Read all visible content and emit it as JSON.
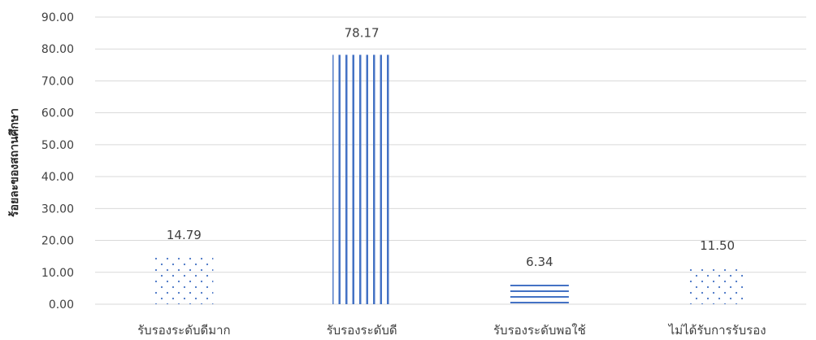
{
  "chart_data": {
    "type": "bar",
    "title": "",
    "xlabel": "",
    "ylabel": "ร้อยละของสถานศึกษา",
    "ylim": [
      0,
      90
    ],
    "yticks": [
      "0.00",
      "10.00",
      "20.00",
      "30.00",
      "40.00",
      "50.00",
      "60.00",
      "70.00",
      "80.00",
      "90.00"
    ],
    "categories": [
      "รับรองระดับดีมาก",
      "รับรองระดับดี",
      "รับรองระดับพอใช้",
      "ไม่ได้รับการรับรอง"
    ],
    "values": [
      14.79,
      78.17,
      6.34,
      11.5
    ],
    "value_labels": [
      "14.79",
      "78.17",
      "6.34",
      "11.50"
    ],
    "patterns": [
      "dots",
      "vertical-lines",
      "horizontal-lines",
      "dots"
    ],
    "grid": true,
    "legend": "none",
    "colors": {
      "fill": "#4472c4",
      "grid": "#d9d9d9",
      "text": "#404040"
    }
  }
}
